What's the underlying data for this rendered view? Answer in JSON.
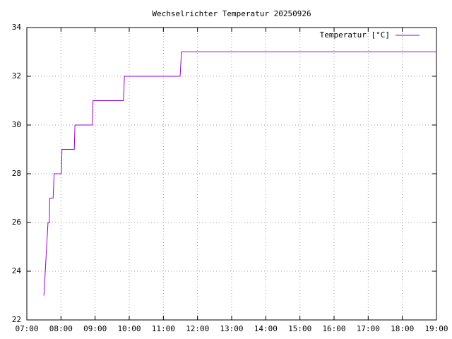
{
  "chart_data": {
    "type": "line",
    "title": "Wechselrichter Temperatur 20250926",
    "x": [
      7.5,
      7.62,
      7.66,
      7.67,
      7.77,
      7.8,
      8.01,
      8.03,
      8.39,
      8.41,
      8.92,
      8.94,
      9.83,
      9.86,
      11.49,
      11.53,
      19
    ],
    "series": [
      {
        "name": "Temperatur [°C]",
        "color": "#9400d3",
        "values": [
          23,
          26,
          26,
          27,
          27,
          28,
          28,
          29,
          29,
          30,
          30,
          31,
          31,
          32,
          32,
          33,
          33
        ]
      }
    ],
    "xlim": [
      7,
      19
    ],
    "xticks": [
      {
        "value": 7,
        "label": "07:00"
      },
      {
        "value": 8,
        "label": "08:00"
      },
      {
        "value": 9,
        "label": "09:00"
      },
      {
        "value": 10,
        "label": "10:00"
      },
      {
        "value": 11,
        "label": "11:00"
      },
      {
        "value": 12,
        "label": "12:00"
      },
      {
        "value": 13,
        "label": "13:00"
      },
      {
        "value": 14,
        "label": "14:00"
      },
      {
        "value": 15,
        "label": "15:00"
      },
      {
        "value": 16,
        "label": "16:00"
      },
      {
        "value": 17,
        "label": "17:00"
      },
      {
        "value": 18,
        "label": "18:00"
      },
      {
        "value": 19,
        "label": "19:00"
      }
    ],
    "ylim": [
      22,
      34
    ],
    "yticks": [
      22,
      24,
      26,
      28,
      30,
      32,
      34
    ],
    "grid": true,
    "legend": "top-right"
  }
}
